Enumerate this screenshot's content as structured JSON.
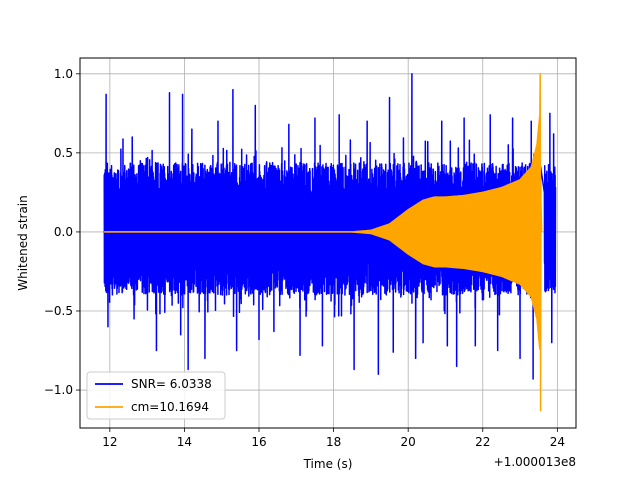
{
  "chart_data": {
    "type": "line",
    "title": "",
    "xlabel": "Time (s)",
    "ylabel": "Whitened strain",
    "x_offset_label": "+1.000013e8",
    "xlim": [
      11.2,
      24.5
    ],
    "ylim": [
      -1.24,
      1.1
    ],
    "x_ticks": [
      12,
      14,
      16,
      18,
      20,
      22,
      24
    ],
    "x_tick_labels": [
      "12",
      "14",
      "16",
      "18",
      "20",
      "22",
      "24"
    ],
    "y_ticks": [
      -1.0,
      -0.5,
      0.0,
      0.5,
      1.0
    ],
    "y_tick_labels": [
      "−1.0",
      "−0.5",
      "0.0",
      "0.5",
      "1.0"
    ],
    "grid": true,
    "legend_position": "lower-left",
    "series": [
      {
        "name": "SNR= 6.0338",
        "color": "#0000ff",
        "kind": "whitened-noise",
        "x_range": [
          11.85,
          23.95
        ],
        "gap": [
          23.55,
          23.65
        ],
        "typical_band": [
          -0.38,
          0.42
        ],
        "peaks": [
          {
            "x": 11.9,
            "y": 0.87
          },
          {
            "x": 11.95,
            "y": -0.6
          },
          {
            "x": 12.6,
            "y": 0.6
          },
          {
            "x": 12.65,
            "y": -0.55
          },
          {
            "x": 13.25,
            "y": -0.75
          },
          {
            "x": 13.6,
            "y": 0.88
          },
          {
            "x": 13.9,
            "y": -0.65
          },
          {
            "x": 13.95,
            "y": 0.87
          },
          {
            "x": 14.1,
            "y": -0.87
          },
          {
            "x": 14.2,
            "y": 0.65
          },
          {
            "x": 14.55,
            "y": -0.8
          },
          {
            "x": 14.9,
            "y": 0.7
          },
          {
            "x": 15.3,
            "y": 0.9
          },
          {
            "x": 15.4,
            "y": -0.75
          },
          {
            "x": 15.9,
            "y": 0.8
          },
          {
            "x": 16.0,
            "y": -0.68
          },
          {
            "x": 16.4,
            "y": -0.63
          },
          {
            "x": 16.8,
            "y": 0.68
          },
          {
            "x": 17.1,
            "y": -0.78
          },
          {
            "x": 17.5,
            "y": 0.72
          },
          {
            "x": 17.7,
            "y": -0.72
          },
          {
            "x": 18.15,
            "y": 0.74
          },
          {
            "x": 18.55,
            "y": -0.87
          },
          {
            "x": 18.9,
            "y": 0.7
          },
          {
            "x": 19.2,
            "y": -0.9
          },
          {
            "x": 19.5,
            "y": 0.85
          },
          {
            "x": 19.6,
            "y": -0.76
          },
          {
            "x": 20.1,
            "y": 1.0
          },
          {
            "x": 20.2,
            "y": -0.8
          },
          {
            "x": 20.4,
            "y": -0.7
          },
          {
            "x": 20.9,
            "y": 0.7
          },
          {
            "x": 21.05,
            "y": -0.72
          },
          {
            "x": 21.3,
            "y": -0.85
          },
          {
            "x": 21.5,
            "y": 0.72
          },
          {
            "x": 21.8,
            "y": -0.72
          },
          {
            "x": 22.2,
            "y": 0.74
          },
          {
            "x": 22.4,
            "y": -0.75
          },
          {
            "x": 22.8,
            "y": 0.72
          },
          {
            "x": 23.0,
            "y": -0.8
          },
          {
            "x": 23.3,
            "y": 0.7
          },
          {
            "x": 23.35,
            "y": -0.93
          },
          {
            "x": 23.8,
            "y": 0.75
          },
          {
            "x": 23.85,
            "y": -0.7
          },
          {
            "x": 23.9,
            "y": 0.62
          }
        ]
      },
      {
        "name": "cm=10.1694",
        "color": "#ffa500",
        "kind": "chirp-template",
        "x_range": [
          11.85,
          23.6
        ],
        "envelope": [
          [
            11.85,
            0.0
          ],
          [
            18.5,
            0.0
          ],
          [
            19.0,
            0.01
          ],
          [
            19.5,
            0.05
          ],
          [
            20.0,
            0.14
          ],
          [
            20.4,
            0.2
          ],
          [
            20.7,
            0.22
          ],
          [
            21.0,
            0.22
          ],
          [
            21.5,
            0.23
          ],
          [
            22.0,
            0.25
          ],
          [
            22.5,
            0.28
          ],
          [
            23.0,
            0.33
          ],
          [
            23.3,
            0.41
          ],
          [
            23.45,
            0.55
          ],
          [
            23.55,
            0.8
          ]
        ],
        "max": 1.0,
        "min": -1.13,
        "peak_time": 23.55
      }
    ]
  }
}
